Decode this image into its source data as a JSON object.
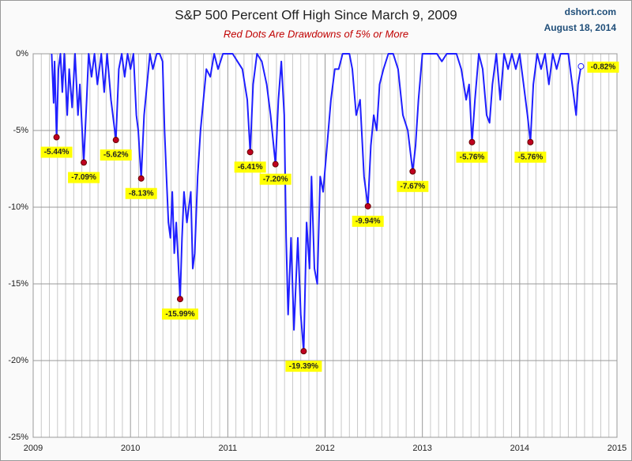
{
  "chart_data": {
    "type": "line",
    "title": "S&P 500 Percent Off High Since March 9, 2009",
    "subtitle": "Red Dots Are Drawdowns of 5% or More",
    "source": "dshort.com",
    "date": "August 18, 2014",
    "xlim": [
      2009,
      2015
    ],
    "xticks": [
      2009,
      2010,
      2011,
      2012,
      2013,
      2014,
      2015
    ],
    "xgrid_minor": 12,
    "ylim": [
      -25,
      0
    ],
    "yticks": [
      {
        "value": 0,
        "label": "0%"
      },
      {
        "value": -5,
        "label": "-5%"
      },
      {
        "value": -10,
        "label": "-10%"
      },
      {
        "value": -15,
        "label": "-15%"
      },
      {
        "value": -20,
        "label": "-20%"
      },
      {
        "value": -25,
        "label": "-25%"
      }
    ],
    "grid": true,
    "series": [
      {
        "color": "#1f1fff",
        "x": [
          2009.19,
          2009.21,
          2009.22,
          2009.24,
          2009.26,
          2009.28,
          2009.3,
          2009.32,
          2009.35,
          2009.37,
          2009.4,
          2009.43,
          2009.46,
          2009.48,
          2009.52,
          2009.55,
          2009.57,
          2009.6,
          2009.63,
          2009.66,
          2009.7,
          2009.73,
          2009.76,
          2009.8,
          2009.85,
          2009.88,
          2009.91,
          2009.94,
          2009.97,
          2010.0,
          2010.03,
          2010.06,
          2010.08,
          2010.11,
          2010.14,
          2010.17,
          2010.2,
          2010.23,
          2010.27,
          2010.3,
          2010.33,
          2010.35,
          2010.37,
          2010.39,
          2010.41,
          2010.43,
          2010.45,
          2010.47,
          2010.51,
          2010.53,
          2010.55,
          2010.58,
          2010.62,
          2010.64,
          2010.66,
          2010.69,
          2010.72,
          2010.75,
          2010.78,
          2010.82,
          2010.86,
          2010.9,
          2010.95,
          2011.0,
          2011.05,
          2011.1,
          2011.15,
          2011.2,
          2011.23,
          2011.26,
          2011.3,
          2011.35,
          2011.4,
          2011.44,
          2011.49,
          2011.52,
          2011.55,
          2011.58,
          2011.6,
          2011.62,
          2011.65,
          2011.68,
          2011.72,
          2011.75,
          2011.78,
          2011.81,
          2011.84,
          2011.86,
          2011.89,
          2011.92,
          2011.95,
          2011.98,
          2012.02,
          2012.06,
          2012.1,
          2012.14,
          2012.18,
          2012.22,
          2012.25,
          2012.28,
          2012.32,
          2012.36,
          2012.4,
          2012.44,
          2012.47,
          2012.5,
          2012.53,
          2012.56,
          2012.6,
          2012.65,
          2012.7,
          2012.75,
          2012.8,
          2012.85,
          2012.9,
          2012.93,
          2012.96,
          2013.0,
          2013.05,
          2013.1,
          2013.15,
          2013.2,
          2013.25,
          2013.3,
          2013.35,
          2013.4,
          2013.45,
          2013.48,
          2013.51,
          2013.54,
          2013.58,
          2013.62,
          2013.66,
          2013.69,
          2013.72,
          2013.76,
          2013.8,
          2013.84,
          2013.88,
          2013.92,
          2013.96,
          2014.0,
          2014.04,
          2014.08,
          2014.11,
          2014.14,
          2014.18,
          2014.22,
          2014.26,
          2014.3,
          2014.34,
          2014.38,
          2014.42,
          2014.46,
          2014.5,
          2014.53,
          2014.56,
          2014.58,
          2014.6,
          2014.63
        ],
        "values": [
          0,
          -3.2,
          -0.5,
          -5.44,
          -1,
          0,
          -2.5,
          0,
          -4,
          -1,
          -3.5,
          0,
          -4,
          -2,
          -7.09,
          -3,
          0,
          -1.5,
          0,
          -2,
          0,
          -2.5,
          0,
          -3,
          -5.62,
          -1,
          0,
          -1.5,
          0,
          -1,
          0,
          -4,
          -5,
          -8.13,
          -4,
          -2,
          0,
          -1,
          0,
          0,
          -0.5,
          -5,
          -8,
          -11,
          -12,
          -9,
          -13,
          -11,
          -15.99,
          -12,
          -9,
          -11,
          -9,
          -14,
          -13,
          -8,
          -5,
          -3,
          -1,
          -1.5,
          0,
          -1,
          0,
          0,
          0,
          -0.5,
          -1,
          -3,
          -6.41,
          -2,
          0,
          -0.5,
          -2,
          -4,
          -7.2,
          -3,
          -0.5,
          -4,
          -12,
          -17,
          -12,
          -18,
          -12,
          -17,
          -19.39,
          -11,
          -14,
          -8,
          -14,
          -15,
          -8,
          -9,
          -6,
          -3,
          -1,
          -1,
          0,
          0,
          0,
          -1,
          -4,
          -3,
          -8,
          -9.94,
          -6,
          -4,
          -5,
          -2,
          -1,
          0,
          0,
          -1,
          -4,
          -5,
          -7.67,
          -6,
          -3,
          0,
          0,
          0,
          0,
          -0.5,
          0,
          0,
          0,
          -1,
          -3,
          -2,
          -5.76,
          -3,
          0,
          -1,
          -4,
          -4.5,
          -2,
          0,
          -3,
          0,
          -1,
          0,
          -1,
          0,
          -2,
          -4,
          -5.76,
          -2,
          0,
          -1,
          0,
          -2,
          0,
          -1,
          0,
          0,
          0,
          -1.5,
          -3,
          -4,
          -2,
          -0.82
        ]
      }
    ],
    "drawdowns": {
      "color": "#c00020",
      "x": [
        2009.24,
        2009.52,
        2009.85,
        2010.11,
        2010.51,
        2011.23,
        2011.49,
        2011.78,
        2012.44,
        2012.9,
        2013.51,
        2014.11
      ],
      "values": [
        -5.44,
        -7.09,
        -5.62,
        -8.13,
        -15.99,
        -6.41,
        -7.2,
        -19.39,
        -9.94,
        -7.67,
        -5.76,
        -5.76
      ],
      "value_labels": [
        "-5.44%",
        "-7.09%",
        "-5.62%",
        "-8.13%",
        "-15.99%",
        "-6.41%",
        "-7.20%",
        "-19.39%",
        "-9.94%",
        "-7.67%",
        "-5.76%",
        "-5.76%"
      ]
    },
    "latest": {
      "x": 2014.63,
      "value": -0.82,
      "value_label": "-0.82%"
    }
  }
}
